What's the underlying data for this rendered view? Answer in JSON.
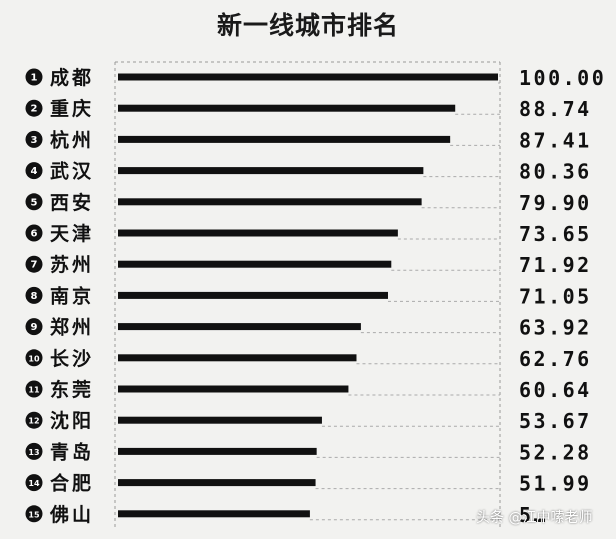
{
  "chart_data": {
    "type": "bar",
    "orientation": "horizontal",
    "title": "新一线城市排名",
    "ranks": [
      "1",
      "2",
      "3",
      "4",
      "5",
      "6",
      "7",
      "8",
      "9",
      "10",
      "11",
      "12",
      "13",
      "14",
      "15"
    ],
    "categories": [
      "成都",
      "重庆",
      "杭州",
      "武汉",
      "西安",
      "天津",
      "苏州",
      "南京",
      "郑州",
      "长沙",
      "东莞",
      "沈阳",
      "青岛",
      "合肥",
      "佛山"
    ],
    "values": [
      100.0,
      88.74,
      87.41,
      80.36,
      79.9,
      73.65,
      71.92,
      71.05,
      63.92,
      62.76,
      60.64,
      53.67,
      52.28,
      51.99,
      null
    ],
    "value_labels": [
      "100.00",
      "88.74",
      "87.41",
      "80.36",
      "79.90",
      "73.65",
      "71.92",
      "71.05",
      "63.92",
      "62.76",
      "60.64",
      "53.67",
      "52.28",
      "51.99",
      "5…"
    ],
    "xlim": [
      0,
      100
    ],
    "grid": "dashed guide lines",
    "colors": {
      "bar": "#111111",
      "background": "#f2f2f0"
    }
  },
  "watermark": "头条 @江中嗦老师"
}
